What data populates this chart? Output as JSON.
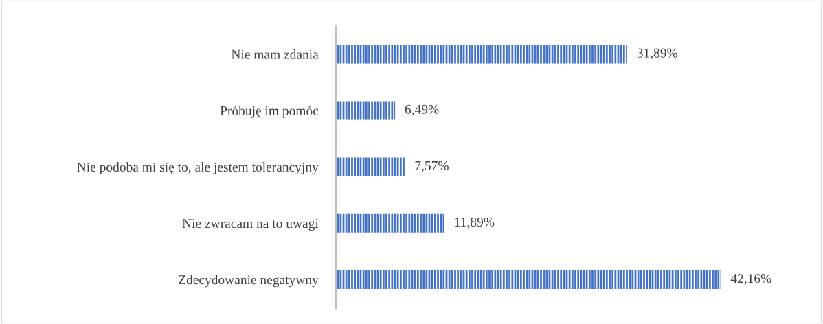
{
  "chart_data": {
    "type": "bar",
    "orientation": "horizontal",
    "categories": [
      "Nie mam zdania",
      "Próbuję im pomóc",
      "Nie podoba mi się to, ale jestem tolerancyjny",
      "Nie zwracam na to uwagi",
      "Zdecydowanie negatywny"
    ],
    "values": [
      31.89,
      6.49,
      7.57,
      11.89,
      42.16
    ],
    "value_labels": [
      "31,89%",
      "6,49%",
      "7,57%",
      "11,89%",
      "42,16%"
    ],
    "color": "#4472c4",
    "grid": false,
    "legend": false
  }
}
